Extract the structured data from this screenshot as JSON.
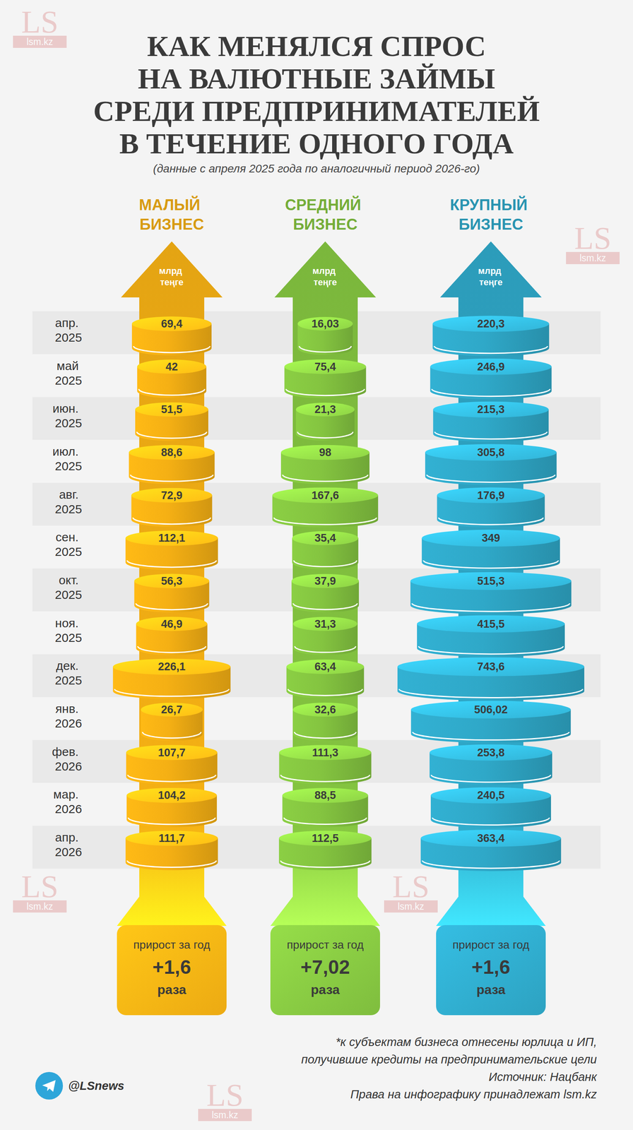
{
  "chart_data": {
    "type": "pictorial",
    "title": [
      "КАК МЕНЯЛСЯ СПРОС",
      "НА ВАЛЮТНЫЕ ЗАЙМЫ",
      "СРЕДИ ПРЕДПРИНИМАТЕЛЕЙ",
      "В ТЕЧЕНИЕ ОДНОГО ГОДА"
    ],
    "subtitle": "(данные с апреля 2025 года по аналогичный период 2026-го)",
    "categories": [
      "апр. 2025",
      "май 2025",
      "июн. 2025",
      "июл. 2025",
      "авг. 2025",
      "сен. 2025",
      "окт. 2025",
      "ноя. 2025",
      "дек. 2025",
      "янв. 2026",
      "фев. 2026",
      "мар. 2026",
      "апр. 2026"
    ],
    "unit": "млрд теңге",
    "data_labels": true,
    "series": [
      {
        "name": "МАЛЫЙ БИЗНЕС",
        "color": "#f5b014",
        "values": [
          69.4,
          42,
          51.5,
          88.6,
          72.9,
          112.1,
          56.3,
          46.9,
          226.1,
          26.7,
          107.7,
          104.2,
          111.7
        ],
        "value_labels": [
          "69,4",
          "42",
          "51,5",
          "88,6",
          "72,9",
          "112,1",
          "56,3",
          "46,9",
          "226,1",
          "26,7",
          "107,7",
          "104,2",
          "111,7"
        ],
        "growth_label": "прирост за год",
        "growth": "+1,6",
        "growth_unit": "раза"
      },
      {
        "name": "СРЕДНИЙ БИЗНЕС",
        "color": "#84c440",
        "values": [
          16.03,
          75.4,
          21.3,
          98,
          167.6,
          35.4,
          37.9,
          31.3,
          63.4,
          32.6,
          111.3,
          88.5,
          112.5
        ],
        "value_labels": [
          "16,03",
          "75,4",
          "21,3",
          "98",
          "167,6",
          "35,4",
          "37,9",
          "31,3",
          "63,4",
          "32,6",
          "111,3",
          "88,5",
          "112,5"
        ],
        "growth_label": "прирост за год",
        "growth": "+7,02",
        "growth_unit": "раза"
      },
      {
        "name": "КРУПНЫЙ БИЗНЕС",
        "color": "#2fa8c8",
        "values": [
          220.3,
          246.9,
          215.3,
          305.8,
          176.9,
          349,
          515.3,
          415.5,
          743.6,
          506.02,
          253.8,
          240.5,
          363.4
        ],
        "value_labels": [
          "220,3",
          "246,9",
          "215,3",
          "305,8",
          "176,9",
          "349",
          "515,3",
          "415,5",
          "743,6",
          "506,02",
          "253,8",
          "240,5",
          "363,4"
        ],
        "growth_label": "прирост за год",
        "growth": "+1,6",
        "growth_unit": "раза"
      }
    ],
    "notes": [
      "*к субъектам бизнеса отнесены юрлица и ИП,",
      "получившие кредиты на предпринимательские цели",
      "Источник: Нацбанк",
      "Права на инфографику принадлежат lsm.kz"
    ],
    "channel": "@LSnews",
    "watermark": {
      "logo": "LS",
      "site": "lsm.kz"
    }
  }
}
